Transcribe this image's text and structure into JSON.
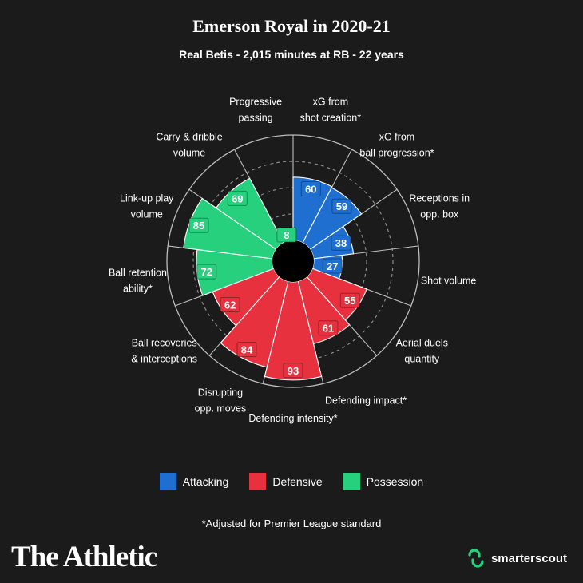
{
  "header": {
    "title": "Emerson Royal in 2020-21",
    "subtitle": "Real Betis - 2,015 minutes at RB - 22 years"
  },
  "colors": {
    "background": "#1b1b1b",
    "attacking": "#1f6fd0",
    "defensive": "#e8313f",
    "possession": "#26d07c",
    "grid": "#bdbdbd"
  },
  "chart_data": {
    "type": "polar-bar",
    "rlim": [
      0,
      100
    ],
    "start_angle_deg": 0,
    "direction": "clockwise",
    "series": [
      {
        "label": "xG from\nshot creation*",
        "value": 60,
        "category": "attacking"
      },
      {
        "label": "xG from\nball progression*",
        "value": 59,
        "category": "attacking"
      },
      {
        "label": "Receptions in\nopp. box",
        "value": 38,
        "category": "attacking"
      },
      {
        "label": "Shot volume",
        "value": 27,
        "category": "attacking"
      },
      {
        "label": "Aerial duels\nquantity",
        "value": 55,
        "category": "defensive"
      },
      {
        "label": "Defending impact*",
        "value": 61,
        "category": "defensive"
      },
      {
        "label": "Defending intensity*",
        "value": 93,
        "category": "defensive"
      },
      {
        "label": "Disrupting\nopp. moves",
        "value": 84,
        "category": "defensive"
      },
      {
        "label": "Ball recoveries\n& interceptions",
        "value": 62,
        "category": "defensive"
      },
      {
        "label": "Ball retention\nability*",
        "value": 72,
        "category": "possession"
      },
      {
        "label": "Link-up play\nvolume",
        "value": 85,
        "category": "possession"
      },
      {
        "label": "Carry & dribble\nvolume",
        "value": 69,
        "category": "possession"
      },
      {
        "label": "Progressive\npassing",
        "value": 8,
        "category": "possession"
      }
    ]
  },
  "legend": [
    {
      "key": "attacking",
      "label": "Attacking"
    },
    {
      "key": "defensive",
      "label": "Defensive"
    },
    {
      "key": "possession",
      "label": "Possession"
    }
  ],
  "footnote": "*Adjusted for Premier League standard",
  "footer": {
    "brand": "The Athletic",
    "partner": "smarterscout"
  }
}
